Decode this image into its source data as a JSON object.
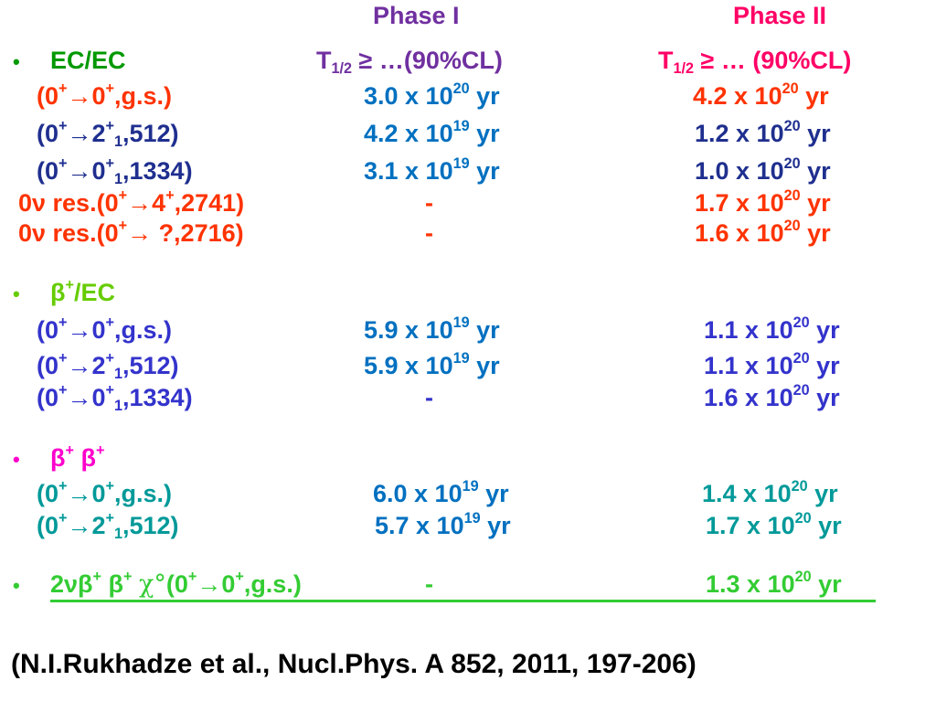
{
  "colors": {
    "purple": "#7030a0",
    "magenta": "#ff0066",
    "green": "#009900",
    "orange_red": "#ff3300",
    "navy": "#1f2f8f",
    "blue": "#0070c0",
    "dark_blue": "#3333cc",
    "lime": "#66cc00",
    "pink": "#ff00cc",
    "teal": "#009999",
    "lime_green": "#33cc33"
  },
  "header": {
    "phase1": "Phase I",
    "phase2": "Phase II",
    "t_sym": "T",
    "t_sub": "1/2",
    "phase1_limit": " ≥ …(90%CL)",
    "phase2_limit": " ≥ … (90%CL)"
  },
  "bullet_char": "•",
  "sections": {
    "ec_ec": {
      "title": "EC/EC",
      "rows": [
        {
          "label_html": "(0<sup>+</sup>→0<sup>+</sup>,g.s.)",
          "p1": "3.0 x 10<sup>20</sup> yr",
          "p2": "4.2 x 10<sup>20</sup> yr"
        },
        {
          "label_html": "(0<sup>+</sup>→2<sup>+</sup><sub>1</sub>,512)",
          "p1": "4.2 x 10<sup>19</sup> yr",
          "p2": "1.2 x 10<sup>20</sup> yr"
        },
        {
          "label_html": "(0<sup>+</sup>→0<sup>+</sup><sub>1</sub>,1334)",
          "p1": "3.1 x 10<sup>19</sup> yr",
          "p2": "1.0 x 10<sup>20</sup> yr"
        },
        {
          "label_html": "0ν res.(0<sup>+</sup>→4<sup>+</sup>,2741)",
          "p1": "-",
          "p2": "1.7 x 10<sup>20</sup> yr"
        },
        {
          "label_html": "0ν res.(0<sup>+</sup>→ ?,2716)",
          "p1": "-",
          "p2": "1.6 x 10<sup>20</sup> yr"
        }
      ]
    },
    "beta_ec": {
      "title_html": "β<sup>+</sup>/EC",
      "rows": [
        {
          "label_html": "(0<sup>+</sup>→0<sup>+</sup>,g.s.)",
          "p1": "5.9 x 10<sup>19</sup> yr",
          "p2": "1.1 x 10<sup>20</sup> yr"
        },
        {
          "label_html": "(0<sup>+</sup>→2<sup>+</sup><sub>1</sub>,512)",
          "p1": "5.9 x 10<sup>19</sup> yr",
          "p2": "1.1 x 10<sup>20</sup> yr"
        },
        {
          "label_html": "(0<sup>+</sup>→0<sup>+</sup><sub>1</sub>,1334)",
          "p1": "-",
          "p2": "1.6 x 10<sup>20</sup> yr"
        }
      ]
    },
    "beta_beta": {
      "title_html": "β<sup>+</sup> β<sup>+</sup>",
      "rows": [
        {
          "label_html": "(0<sup>+</sup>→0<sup>+</sup>,g.s.)",
          "p1": "6.0 x 10<sup>19</sup> yr",
          "p2": "1.4 x 10<sup>20</sup> yr"
        },
        {
          "label_html": "(0<sup>+</sup>→2<sup>+</sup><sub>1</sub>,512)",
          "p1": "5.7 x 10<sup>19</sup> yr",
          "p2": "1.7 x 10<sup>20</sup> yr"
        }
      ]
    },
    "majoron": {
      "label_html": "2νβ<sup>+</sup> β<sup>+</sup> <span style=\"font-family:'DejaVu Serif',serif;font-weight:normal;\">χ°</span>(0<sup>+</sup>→0<sup>+</sup>,g.s.)",
      "p1": "-",
      "p2": "1.3 x 10<sup>20</sup> yr"
    }
  },
  "citation": "(N.I.Rukhadze et al., Nucl.Phys. A 852, 2011, 197-206)"
}
